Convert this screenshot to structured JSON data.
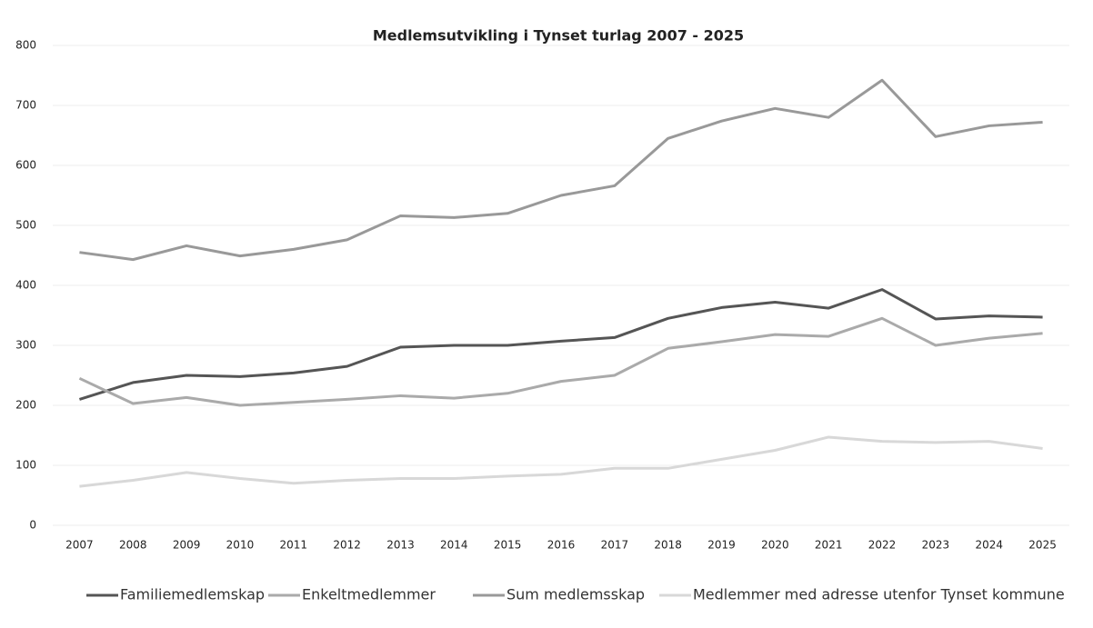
{
  "chart_data": {
    "type": "line",
    "title": "Medlemsutvikling i Tynset turlag 2007 - 2025",
    "categories": [
      "2007",
      "2008",
      "2009",
      "2010",
      "2011",
      "2012",
      "2013",
      "2014",
      "2015",
      "2016",
      "2017",
      "2018",
      "2019",
      "2020",
      "2021",
      "2022",
      "2023",
      "2024",
      "2025"
    ],
    "series": [
      {
        "name": "Familiemedlemskap",
        "color": "#555555",
        "values": [
          210,
          238,
          250,
          248,
          254,
          265,
          297,
          300,
          300,
          307,
          313,
          345,
          363,
          372,
          362,
          393,
          344,
          349,
          347
        ]
      },
      {
        "name": "Enkeltmedlemmer",
        "color": "#aaaaaa",
        "values": [
          245,
          203,
          213,
          200,
          205,
          210,
          216,
          212,
          220,
          240,
          250,
          295,
          306,
          318,
          315,
          345,
          300,
          312,
          320
        ]
      },
      {
        "name": "Sum medlemsskap",
        "color": "#999999",
        "values": [
          455,
          443,
          466,
          449,
          460,
          476,
          516,
          513,
          520,
          550,
          566,
          645,
          674,
          695,
          680,
          742,
          648,
          666,
          672
        ]
      },
      {
        "name": "Medlemmer med adresse utenfor Tynset kommune",
        "color": "#d8d8d8",
        "values": [
          65,
          75,
          88,
          78,
          70,
          75,
          78,
          78,
          82,
          85,
          95,
          95,
          110,
          125,
          147,
          140,
          138,
          140,
          128
        ]
      }
    ],
    "ylim": [
      0,
      800
    ],
    "yticks": [
      0,
      100,
      200,
      300,
      400,
      500,
      600,
      700,
      800
    ],
    "grid": true,
    "legend": "bottom"
  }
}
